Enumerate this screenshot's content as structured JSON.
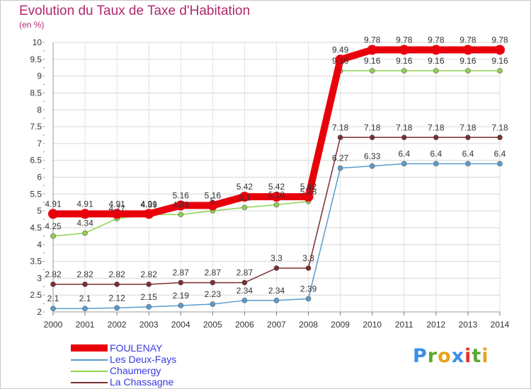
{
  "header": {
    "title": "Evolution du Taux de Taxe d'Habitation",
    "unit": "(en %)"
  },
  "logo": {
    "text": "Proxiti",
    "letters": [
      "P",
      "r",
      "o",
      "x",
      "i",
      "t",
      "i"
    ],
    "colors": [
      "#3a8ee6",
      "#5aa832",
      "#e8a21a",
      "#3a8ee6",
      "#e8312c",
      "#5aa832",
      "#e8a21a"
    ]
  },
  "chart_data": {
    "type": "line",
    "x": [
      "2000",
      "2001",
      "2002",
      "2003",
      "2004",
      "2005",
      "2006",
      "2007",
      "2008",
      "2009",
      "2010",
      "2011",
      "2012",
      "2013",
      "2014"
    ],
    "ylim": [
      2,
      10
    ],
    "yticks": [
      "2",
      "2.5",
      "3",
      "3.5",
      "4",
      "4.5",
      "5",
      "5.5",
      "6",
      "6.5",
      "7",
      "7.5",
      "8",
      "8.5",
      "9",
      "9.5",
      "10"
    ],
    "grid": true,
    "legend_position": "bottom-left",
    "series": [
      {
        "name": "FOULENAY",
        "color": "#e8000b",
        "values": [
          4.91,
          4.91,
          4.91,
          4.91,
          5.16,
          5.16,
          5.42,
          5.42,
          5.42,
          9.49,
          9.78,
          9.78,
          9.78,
          9.78,
          9.78
        ],
        "labels": [
          "4.91",
          "4.91",
          "4.91",
          "4.91",
          "5.16",
          "5.16",
          "5.42",
          "5.42",
          "5.42",
          "9.49",
          "9.78",
          "9.78",
          "9.78",
          "9.78",
          "9.78"
        ]
      },
      {
        "name": "Les Deux-Fays",
        "color": "#5b9ccc",
        "values": [
          2.1,
          2.1,
          2.12,
          2.15,
          2.19,
          2.23,
          2.34,
          2.34,
          2.39,
          6.27,
          6.33,
          6.4,
          6.4,
          6.4,
          6.4
        ],
        "labels": [
          "2.1",
          "2.1",
          "2.12",
          "2.15",
          "2.19",
          "2.23",
          "2.34",
          "2.34",
          "2.39",
          "6.27",
          "6.33",
          "6.4",
          "6.4",
          "6.4",
          "6.4"
        ]
      },
      {
        "name": "Chaumergy",
        "color": "#8fd14f",
        "values": [
          4.25,
          4.34,
          4.77,
          4.89,
          4.89,
          5.0,
          5.1,
          5.18,
          5.28,
          9.16,
          9.16,
          9.16,
          9.16,
          9.16,
          9.16
        ],
        "labels": [
          "4.25",
          "4.34",
          "4.77",
          "4.89",
          "4.89",
          "5",
          "5.1",
          "5.18",
          "5.28",
          "9.16",
          "9.16",
          "9.16",
          "9.16",
          "9.16",
          "9.16"
        ]
      },
      {
        "name": "La Chassagne",
        "color": "#7a2e2e",
        "values": [
          2.82,
          2.82,
          2.82,
          2.82,
          2.87,
          2.87,
          2.87,
          3.3,
          3.3,
          7.18,
          7.18,
          7.18,
          7.18,
          7.18,
          7.18
        ],
        "labels": [
          "2.82",
          "2.82",
          "2.82",
          "2.82",
          "2.87",
          "2.87",
          "2.87",
          "3.3",
          "3.3",
          "7.18",
          "7.18",
          "7.18",
          "7.18",
          "7.18",
          "7.18"
        ]
      }
    ]
  }
}
